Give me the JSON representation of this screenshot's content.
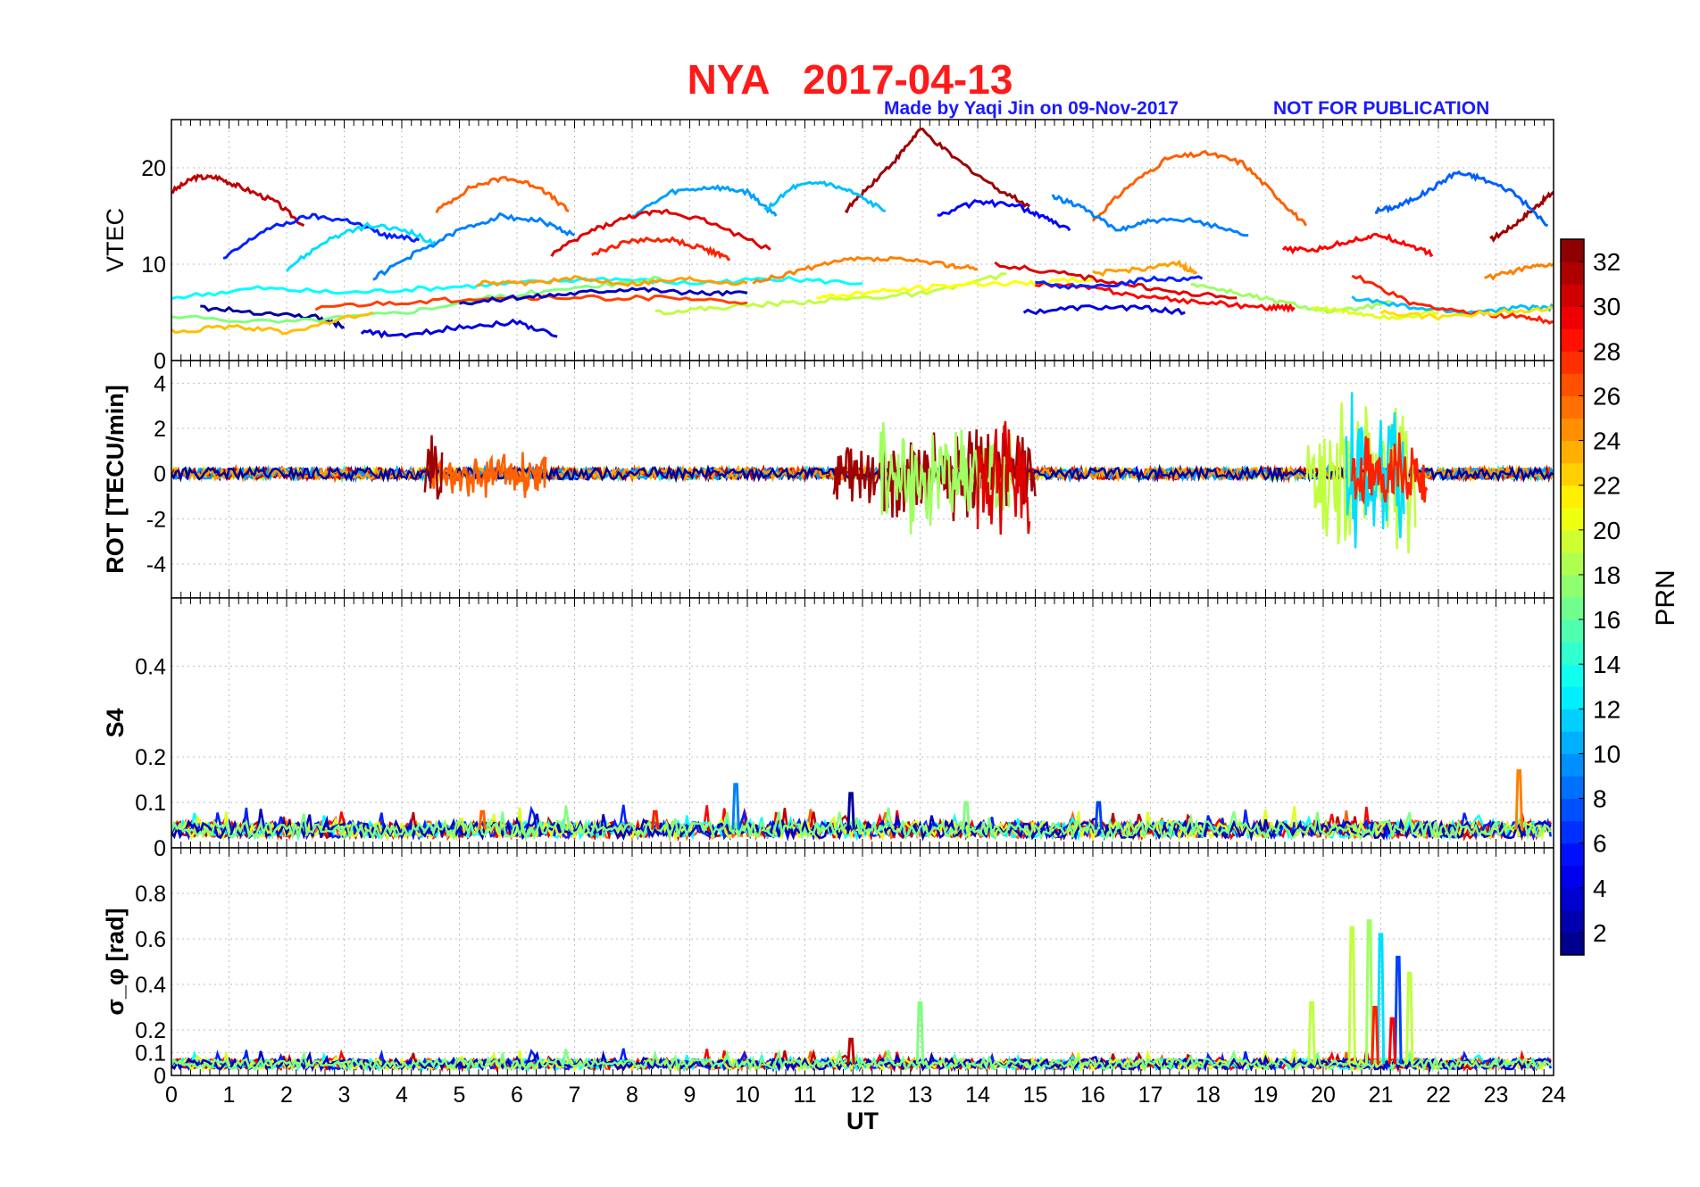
{
  "header": {
    "station": "NYA",
    "date": "2017-04-13",
    "credit": "Made by Yaqi Jin on 09-Nov-2017",
    "notice": "NOT FOR PUBLICATION"
  },
  "chart_data": [
    {
      "type": "line",
      "panel": "vtec",
      "ylabel": "VTEC",
      "xlim": [
        0,
        24
      ],
      "ylim": [
        0,
        25
      ],
      "yticks": [
        0,
        10,
        20
      ],
      "grid": true,
      "series": [
        {
          "prn": 31,
          "x": [
            0,
            0.4,
            0.8,
            1.2,
            1.8,
            2.3
          ],
          "y": [
            17.5,
            19,
            19,
            18,
            16.5,
            14
          ]
        },
        {
          "prn": 32,
          "x": [
            11.7,
            12.1,
            12.6,
            13.0,
            13.6,
            14.3,
            14.9
          ],
          "y": [
            15.5,
            18,
            21,
            24,
            21,
            18,
            16
          ]
        },
        {
          "prn": 32,
          "x": [
            22.9,
            23.3,
            23.7,
            24.0
          ],
          "y": [
            12.5,
            14,
            16,
            17.5
          ]
        },
        {
          "prn": 26,
          "x": [
            4.6,
            5.2,
            5.8,
            6.4,
            6.9
          ],
          "y": [
            15.5,
            18,
            19,
            18,
            15.5
          ]
        },
        {
          "prn": 26,
          "x": [
            16.0,
            16.6,
            17.3,
            18.0,
            18.6,
            19.2,
            19.7
          ],
          "y": [
            14.5,
            18,
            21,
            21.5,
            20.5,
            17,
            14
          ]
        },
        {
          "prn": 6,
          "x": [
            0.9,
            1.6,
            2.4,
            3.1,
            3.7,
            4.3
          ],
          "y": [
            10.5,
            13.5,
            15,
            14.5,
            13,
            12.5
          ]
        },
        {
          "prn": 12,
          "x": [
            2.0,
            2.7,
            3.4,
            4.1,
            4.6
          ],
          "y": [
            9.5,
            12.5,
            14,
            13.5,
            12
          ]
        },
        {
          "prn": 9,
          "x": [
            3.5,
            4.2,
            5.0,
            5.7,
            6.4,
            7.0
          ],
          "y": [
            8.5,
            11,
            13.5,
            15,
            14.5,
            13
          ]
        },
        {
          "prn": 10,
          "x": [
            8.0,
            8.7,
            9.4,
            10.0,
            10.5
          ],
          "y": [
            15,
            17.5,
            18,
            17.5,
            15
          ]
        },
        {
          "prn": 11,
          "x": [
            10.3,
            10.8,
            11.3,
            11.8,
            12.4
          ],
          "y": [
            15.5,
            18,
            18.5,
            17.5,
            15.5
          ]
        },
        {
          "prn": 30,
          "x": [
            6.6,
            7.3,
            8.0,
            8.6,
            9.3,
            10.4
          ],
          "y": [
            11,
            13.5,
            15,
            15.5,
            14.5,
            11.5
          ]
        },
        {
          "prn": 28,
          "x": [
            7.3,
            8.0,
            8.7,
            9.3,
            9.7
          ],
          "y": [
            11,
            12.5,
            12.5,
            11.5,
            10.5
          ]
        },
        {
          "prn": 5,
          "x": [
            13.3,
            14.0,
            14.7,
            15.1,
            15.6
          ],
          "y": [
            15,
            16.5,
            16,
            15,
            13.5
          ]
        },
        {
          "prn": 9,
          "x": [
            15.3,
            15.8,
            16.4,
            17.0,
            17.8,
            18.7
          ],
          "y": [
            17,
            16,
            13.5,
            14.5,
            14.5,
            13
          ]
        },
        {
          "prn": 8,
          "x": [
            20.9,
            21.3,
            21.8,
            22.3,
            22.7,
            23.3,
            23.9
          ],
          "y": [
            15.5,
            16,
            17.5,
            19.5,
            19,
            17.5,
            14
          ]
        },
        {
          "prn": 29,
          "x": [
            19.3,
            19.9,
            20.5,
            21.0,
            21.5,
            21.9
          ],
          "y": [
            11.5,
            11.5,
            12.5,
            13,
            12,
            11
          ]
        },
        {
          "prn": 2,
          "x": [
            0.5,
            1.5,
            2.5,
            3.0
          ],
          "y": [
            5.5,
            5,
            4.5,
            3.5
          ]
        },
        {
          "prn": 4,
          "x": [
            3.3,
            4.0,
            5.0,
            6.0,
            6.7
          ],
          "y": [
            3,
            2.5,
            3.5,
            4,
            2.5
          ]
        },
        {
          "prn": 13,
          "x": [
            0,
            1.5,
            3,
            4.5,
            6,
            7.5,
            9,
            10.5,
            12
          ],
          "y": [
            6.5,
            7.5,
            7,
            7.5,
            8,
            8.5,
            8,
            8.5,
            8
          ]
        },
        {
          "prn": 17,
          "x": [
            0,
            2,
            4,
            5.5,
            7,
            8.5
          ],
          "y": [
            4.5,
            4,
            5,
            6.5,
            7.5,
            8.5
          ]
        },
        {
          "prn": 23,
          "x": [
            0,
            1,
            2,
            3.5
          ],
          "y": [
            3,
            3.5,
            3,
            5
          ]
        },
        {
          "prn": 24,
          "x": [
            5.3,
            6,
            7,
            8,
            9,
            10
          ],
          "y": [
            8,
            8,
            8.5,
            8,
            8.5,
            8
          ]
        },
        {
          "prn": 25,
          "x": [
            10.1,
            11,
            11.8,
            12.6,
            13.4,
            14.0
          ],
          "y": [
            8,
            9.5,
            10.5,
            10.5,
            10,
            9.5
          ]
        },
        {
          "prn": 19,
          "x": [
            8.4,
            9.5,
            10.7,
            12,
            13.2,
            14.5
          ],
          "y": [
            5,
            5.5,
            6,
            6.5,
            7,
            9
          ]
        },
        {
          "prn": 27,
          "x": [
            2.5,
            4,
            5.5,
            7,
            8.5,
            10
          ],
          "y": [
            5.5,
            6,
            6.5,
            6.5,
            6.5,
            6
          ]
        },
        {
          "prn": 3,
          "x": [
            5,
            6,
            7,
            8,
            9,
            10
          ],
          "y": [
            6,
            6.5,
            7,
            7.5,
            7,
            7
          ]
        },
        {
          "prn": 21,
          "x": [
            11.2,
            12,
            13,
            14,
            15,
            16
          ],
          "y": [
            6.5,
            7,
            7.5,
            8,
            8,
            8.5
          ]
        },
        {
          "prn": 30,
          "x": [
            14.3,
            15.5,
            16.5,
            17.5,
            18.5
          ],
          "y": [
            10,
            9,
            8,
            7,
            6.5
          ]
        },
        {
          "prn": 29,
          "x": [
            15,
            16,
            17,
            18,
            19,
            19.5
          ],
          "y": [
            8,
            7.5,
            6.5,
            6,
            5.5,
            5.5
          ]
        },
        {
          "prn": 4,
          "x": [
            14.8,
            15.8,
            16.8,
            17.6
          ],
          "y": [
            5,
            5.5,
            5.5,
            5
          ]
        },
        {
          "prn": 6,
          "x": [
            15,
            16,
            17,
            17.9
          ],
          "y": [
            8,
            7.5,
            8.5,
            8.5
          ]
        },
        {
          "prn": 24,
          "x": [
            16,
            16.8,
            17.5,
            17.8
          ],
          "y": [
            9,
            9.5,
            10,
            9
          ]
        },
        {
          "prn": 18,
          "x": [
            17.7,
            18.5,
            19.3,
            20.2,
            21.2
          ],
          "y": [
            8,
            7,
            6,
            5,
            6
          ]
        },
        {
          "prn": 20,
          "x": [
            19.8,
            20.5,
            21.2,
            22
          ],
          "y": [
            5.5,
            5,
            4.5,
            5
          ]
        },
        {
          "prn": 11,
          "x": [
            20.5,
            21.5,
            22.5,
            23.5,
            24
          ],
          "y": [
            6.5,
            5.5,
            5,
            5.5,
            5.5
          ]
        },
        {
          "prn": 28,
          "x": [
            20.5,
            21.5,
            22.5,
            23.5,
            24
          ],
          "y": [
            9,
            6,
            5,
            4.5,
            4
          ]
        },
        {
          "prn": 22,
          "x": [
            21,
            22,
            23,
            24
          ],
          "y": [
            5,
            4.5,
            5,
            5.5
          ]
        },
        {
          "prn": 25,
          "x": [
            22.8,
            23.5,
            24
          ],
          "y": [
            8.5,
            9.5,
            10
          ]
        }
      ]
    },
    {
      "type": "line",
      "panel": "rot",
      "ylabel": "ROT [TECU/min]",
      "xlim": [
        0,
        24
      ],
      "ylim": [
        -5.5,
        5
      ],
      "yticks": [
        -4,
        -2,
        0,
        2,
        4
      ],
      "grid": true,
      "bursts": [
        {
          "prn": 32,
          "from": 11.5,
          "to": 15.0,
          "amp": 2.2
        },
        {
          "prn": 18,
          "from": 12.3,
          "to": 14.6,
          "amp": 2.8
        },
        {
          "prn": 30,
          "from": 14.0,
          "to": 14.9,
          "amp": 3.0
        },
        {
          "prn": 19,
          "from": 19.7,
          "to": 21.6,
          "amp": 3.8
        },
        {
          "prn": 12,
          "from": 20.4,
          "to": 21.4,
          "amp": 4.0
        },
        {
          "prn": 28,
          "from": 20.5,
          "to": 21.8,
          "amp": 2.0
        },
        {
          "prn": 26,
          "from": 4.5,
          "to": 6.5,
          "amp": 1.2
        },
        {
          "prn": 32,
          "from": 4.4,
          "to": 4.7,
          "amp": 1.8
        }
      ]
    },
    {
      "type": "line",
      "panel": "s4",
      "ylabel": "S4",
      "xlim": [
        0,
        24
      ],
      "ylim": [
        0,
        0.55
      ],
      "yticks": [
        0,
        0.1,
        0.2,
        0.4
      ],
      "grid": true,
      "baseline": 0.04,
      "spikes": [
        {
          "prn": 9,
          "x": 9.8,
          "y": 0.14
        },
        {
          "prn": 2,
          "x": 11.8,
          "y": 0.12
        },
        {
          "prn": 25,
          "x": 23.4,
          "y": 0.17
        },
        {
          "prn": 7,
          "x": 16.1,
          "y": 0.1
        },
        {
          "prn": 17,
          "x": 13.8,
          "y": 0.1
        },
        {
          "prn": 28,
          "x": 8.4,
          "y": 0.08
        },
        {
          "prn": 26,
          "x": 5.4,
          "y": 0.08
        }
      ]
    },
    {
      "type": "line",
      "panel": "sigma_phi",
      "ylabel": "σ_φ [rad]",
      "xlabel": "UT",
      "xlim": [
        0,
        24
      ],
      "ylim": [
        0,
        1
      ],
      "yticks": [
        0,
        0.1,
        0.2,
        0.4,
        0.6,
        0.8
      ],
      "xticks": [
        0,
        1,
        2,
        3,
        4,
        5,
        6,
        7,
        8,
        9,
        10,
        11,
        12,
        13,
        14,
        15,
        16,
        17,
        18,
        19,
        20,
        21,
        22,
        23,
        24
      ],
      "grid": true,
      "baseline": 0.05,
      "spikes": [
        {
          "prn": 17,
          "x": 13.0,
          "y": 0.32
        },
        {
          "prn": 31,
          "x": 11.8,
          "y": 0.16
        },
        {
          "prn": 19,
          "x": 19.8,
          "y": 0.32
        },
        {
          "prn": 19,
          "x": 20.5,
          "y": 0.65
        },
        {
          "prn": 18,
          "x": 20.8,
          "y": 0.68
        },
        {
          "prn": 12,
          "x": 21.0,
          "y": 0.62
        },
        {
          "prn": 7,
          "x": 21.3,
          "y": 0.52
        },
        {
          "prn": 19,
          "x": 21.5,
          "y": 0.45
        },
        {
          "prn": 28,
          "x": 20.9,
          "y": 0.3
        },
        {
          "prn": 29,
          "x": 21.2,
          "y": 0.25
        }
      ]
    }
  ],
  "colorbar": {
    "label": "PRN",
    "ticks": [
      2,
      4,
      6,
      8,
      10,
      12,
      14,
      16,
      18,
      20,
      22,
      24,
      26,
      28,
      30,
      32
    ],
    "range": [
      1,
      33
    ]
  }
}
